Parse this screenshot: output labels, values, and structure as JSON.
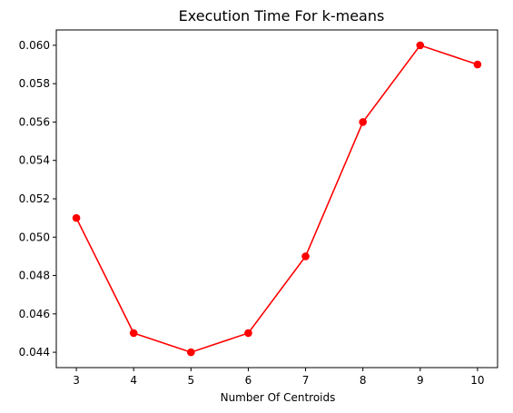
{
  "chart_data": {
    "type": "line",
    "title": "Execution Time For k-means",
    "xlabel": "Number Of Centroids",
    "ylabel": "",
    "x": [
      3,
      4,
      5,
      6,
      7,
      8,
      9,
      10
    ],
    "series": [
      {
        "values": [
          0.051,
          0.045,
          0.044,
          0.045,
          0.049,
          0.056,
          0.06,
          0.059
        ],
        "color": "#ff0000",
        "marker": "circle"
      }
    ],
    "xlim": [
      2.65,
      10.35
    ],
    "ylim": [
      0.0432,
      0.0608
    ],
    "xticks": [
      3,
      4,
      5,
      6,
      7,
      8,
      9,
      10
    ],
    "xtick_labels": [
      "3",
      "4",
      "5",
      "6",
      "7",
      "8",
      "9",
      "10"
    ],
    "yticks": [
      0.044,
      0.046,
      0.048,
      0.05,
      0.052,
      0.054,
      0.056,
      0.058,
      0.06
    ],
    "ytick_labels": [
      "0.044",
      "0.046",
      "0.048",
      "0.050",
      "0.052",
      "0.054",
      "0.056",
      "0.058",
      "0.060"
    ],
    "grid": false,
    "legend": "none"
  }
}
